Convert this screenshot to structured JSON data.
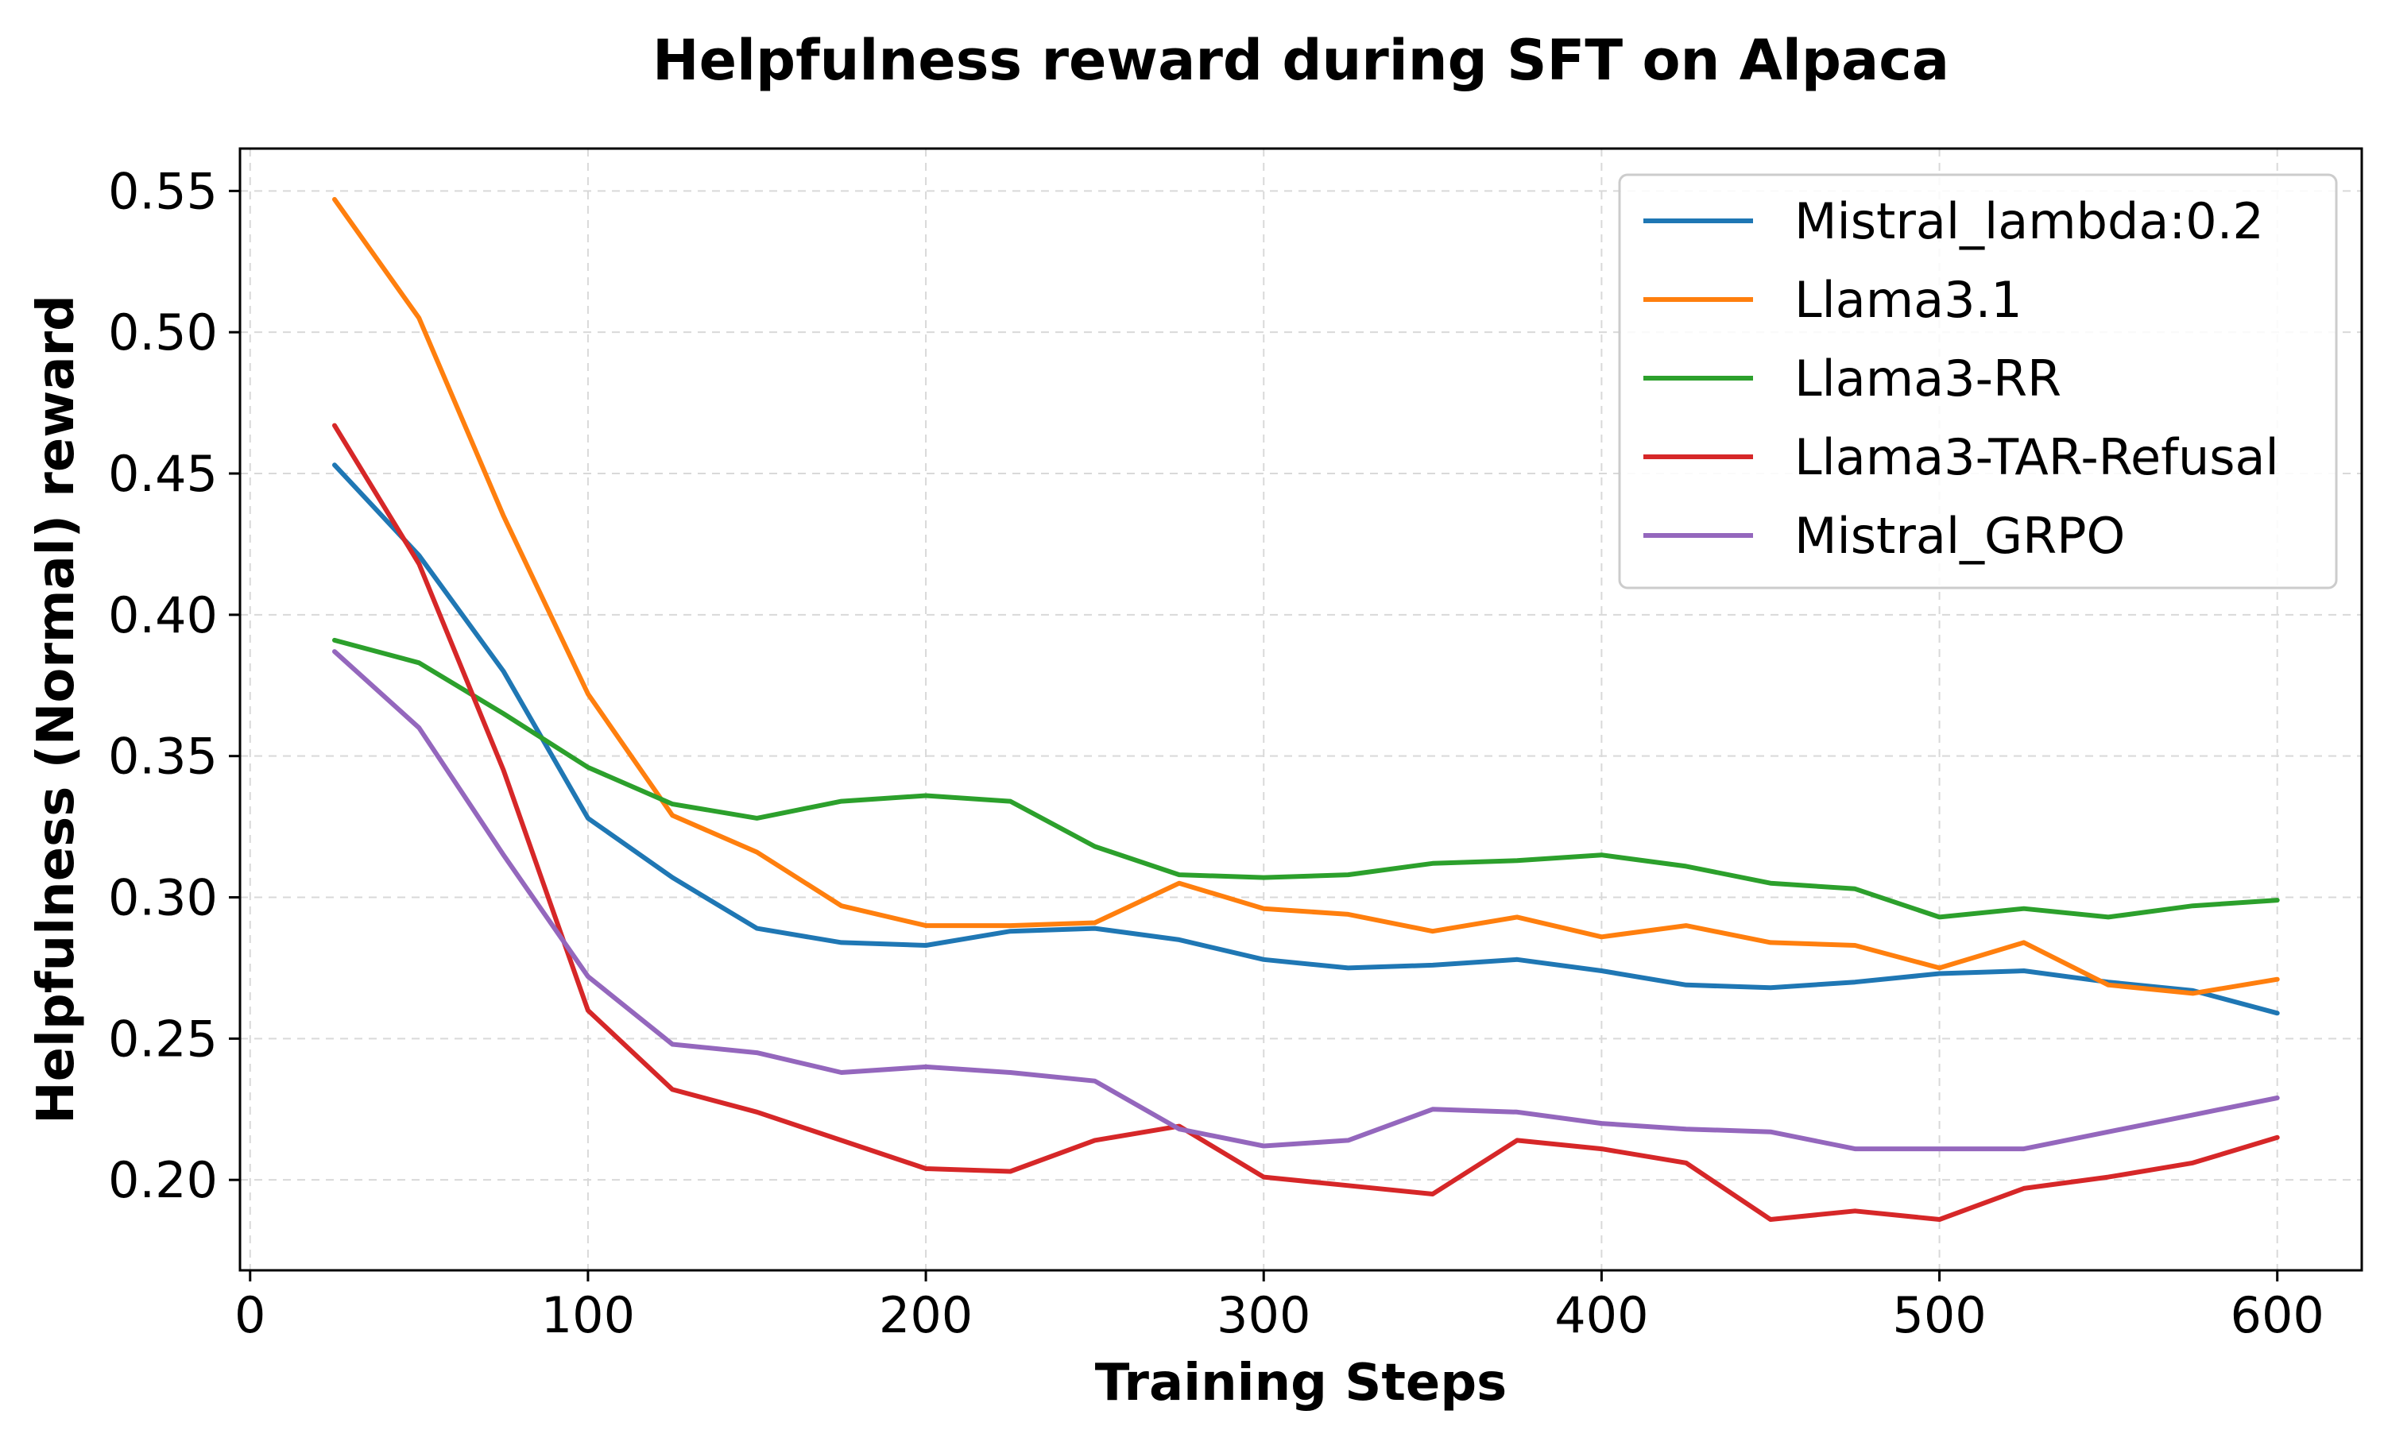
{
  "chart_data": {
    "type": "line",
    "title": "Helpfulness reward during SFT on Alpaca",
    "xlabel": "Training Steps",
    "ylabel": "Helpfulness (Normal) reward",
    "xlim": [
      -3,
      625
    ],
    "ylim": [
      0.168,
      0.565
    ],
    "xticks": [
      0,
      100,
      200,
      300,
      400,
      500,
      600
    ],
    "xtick_labels": [
      "0",
      "100",
      "200",
      "300",
      "400",
      "500",
      "600"
    ],
    "yticks": [
      0.2,
      0.25,
      0.3,
      0.35,
      0.4,
      0.45,
      0.5,
      0.55
    ],
    "ytick_labels": [
      "0.20",
      "0.25",
      "0.30",
      "0.35",
      "0.40",
      "0.45",
      "0.50",
      "0.55"
    ],
    "grid": true,
    "legend_position": "top-right",
    "x": [
      25,
      50,
      75,
      100,
      125,
      150,
      175,
      200,
      225,
      250,
      275,
      300,
      325,
      350,
      375,
      400,
      425,
      450,
      475,
      500,
      525,
      550,
      575,
      600
    ],
    "series": [
      {
        "name": "Mistral_lambda:0.2",
        "color": "#1f77b4",
        "values": [
          0.453,
          0.421,
          0.38,
          0.328,
          0.307,
          0.289,
          0.284,
          0.283,
          0.288,
          0.289,
          0.285,
          0.278,
          0.275,
          0.276,
          0.278,
          0.274,
          0.269,
          0.268,
          0.27,
          0.273,
          0.274,
          0.27,
          0.267,
          0.259
        ]
      },
      {
        "name": "Llama3.1",
        "color": "#ff7f0e",
        "values": [
          0.547,
          0.505,
          0.435,
          0.372,
          0.329,
          0.316,
          0.297,
          0.29,
          0.29,
          0.291,
          0.305,
          0.296,
          0.294,
          0.288,
          0.293,
          0.286,
          0.29,
          0.284,
          0.283,
          0.275,
          0.284,
          0.269,
          0.266,
          0.271
        ]
      },
      {
        "name": "Llama3-RR",
        "color": "#2ca02c",
        "values": [
          0.391,
          0.383,
          0.365,
          0.346,
          0.333,
          0.328,
          0.334,
          0.336,
          0.334,
          0.318,
          0.308,
          0.307,
          0.308,
          0.312,
          0.313,
          0.315,
          0.311,
          0.305,
          0.303,
          0.293,
          0.296,
          0.293,
          0.297,
          0.299
        ]
      },
      {
        "name": "Llama3-TAR-Refusal",
        "color": "#d62728",
        "values": [
          0.467,
          0.418,
          0.345,
          0.26,
          0.232,
          0.224,
          0.214,
          0.204,
          0.203,
          0.214,
          0.219,
          0.201,
          0.198,
          0.195,
          0.214,
          0.211,
          0.206,
          0.186,
          0.189,
          0.186,
          0.197,
          0.201,
          0.206,
          0.215
        ]
      },
      {
        "name": "Mistral_GRPO",
        "color": "#9467bd",
        "values": [
          0.387,
          0.36,
          0.315,
          0.272,
          0.248,
          0.245,
          0.238,
          0.24,
          0.238,
          0.235,
          0.218,
          0.212,
          0.214,
          0.225,
          0.224,
          0.22,
          0.218,
          0.217,
          0.211,
          0.211,
          0.211,
          0.217,
          0.223,
          0.229
        ]
      }
    ]
  }
}
